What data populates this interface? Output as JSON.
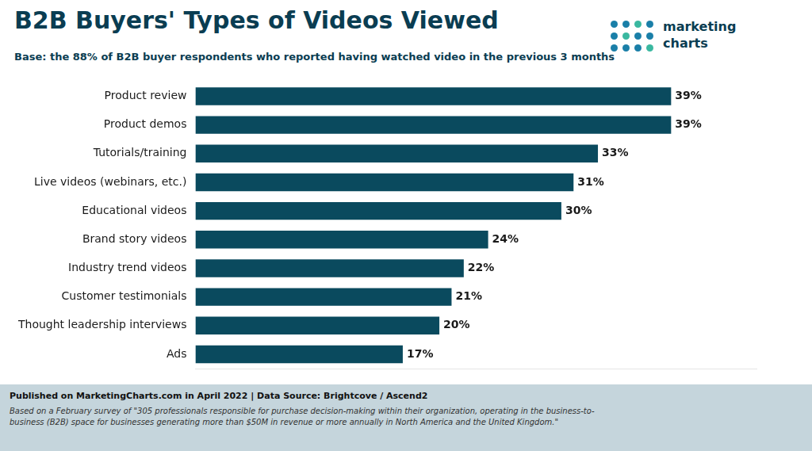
{
  "chart_data": {
    "type": "bar",
    "orientation": "horizontal",
    "title": "B2B Buyers' Types of Videos Viewed",
    "subtitle": "Base: the 88% of B2B buyer respondents who reported having watched video in the previous 3 months",
    "annotations": [
      "Published on MarketingCharts.com in April 2022 | Data Source: Brightcove / Ascend2",
      "Based on a February survey of \"305 professionals responsible for purchase decision-making within their organization, operating in the business-to-\nbusiness (B2B) space for businesses generating more than $50M in revenue or more annually in North America and the United Kingdom.\"",
      "marketing",
      "charts"
    ],
    "categories": [
      "Product review",
      "Product demos",
      "Tutorials/training",
      "Live videos (webinars, etc.)",
      "Educational videos",
      "Brand story videos",
      "Industry trend videos",
      "Customer testimonials",
      "Thought leadership interviews",
      "Ads"
    ],
    "values": [
      39,
      39,
      33,
      31,
      30,
      24,
      22,
      21,
      20,
      17
    ],
    "value_labels": [
      "39%",
      "39%",
      "33%",
      "31%",
      "30%",
      "24%",
      "22%",
      "21%",
      "20%",
      "17%"
    ],
    "data_labels": true,
    "color": "#0a4a5e",
    "xlim": [
      0,
      46
    ],
    "tick_labels": "y",
    "grid": false
  }
}
